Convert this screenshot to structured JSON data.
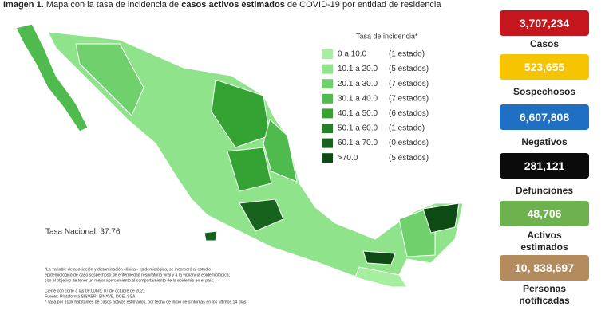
{
  "header": {
    "label": "Imagen 1.",
    "text_1": "Mapa con la tasa de incidencia de ",
    "bold": "casos activos estimados",
    "text_2": " de COVID-19 por entidad de residencia"
  },
  "legend": {
    "title": "Tasa de incidencia*",
    "rows": [
      {
        "range": "0   a  10.0",
        "count": "(1 estado)",
        "color": "#a6efa0"
      },
      {
        "range": "10.1 a  20.0",
        "count": "(5 estados)",
        "color": "#8fe38a"
      },
      {
        "range": "20.1 a  30.0",
        "count": "(7 estados)",
        "color": "#6fd06c"
      },
      {
        "range": "30.1 a  40.0",
        "count": "(7 estados)",
        "color": "#4fbb4f"
      },
      {
        "range": "40.1 a  50.0",
        "count": "(6 estados)",
        "color": "#34a334"
      },
      {
        "range": "50.1 a  60.0",
        "count": "(1 estado)",
        "color": "#22822a"
      },
      {
        "range": "60.1 a  70.0",
        "count": "(0 estados)",
        "color": "#17621d"
      },
      {
        "range": ">70.0",
        "count": "(5 estados)",
        "color": "#0d4a14"
      }
    ]
  },
  "national_rate": "Tasa Nacional: 37.76",
  "footnotes": [
    "*La variable de asociación y dictaminación clínica - epidemiológica, se incorporó al estudio",
    "epidemiológico de caso sospechoso de enfermedad respiratoria viral y a la vigilancia epidemiológica;",
    "con el objetivo de tener un mejor acercamiento al comportamiento de la epidemia en el país.",
    "Cierre con corte a las 09:00hrs, 07 de octubre de 2021",
    "Fuente: Plataforma SISVER, SINAVE, DGE, SSA.",
    "* Tasa por 100k habitantes de casos activos estimados, por fecha de inicio de síntomas en los últimos 14 días."
  ],
  "stats": [
    {
      "value": "3,707,234",
      "label": "Casos",
      "color": "#c4161c"
    },
    {
      "value": "523,655",
      "label": "Sospechosos",
      "color": "#f6c400"
    },
    {
      "value": "6,607,808",
      "label": "Negativos",
      "color": "#1f6fc5"
    },
    {
      "value": "281,121",
      "label": "Defunciones",
      "color": "#0b0b0b"
    },
    {
      "value": "48,706",
      "label": "Activos estimados",
      "color": "#6db24e"
    },
    {
      "value": "10, 838,697",
      "label": "Personas notificadas",
      "color": "#b38b5c"
    }
  ]
}
